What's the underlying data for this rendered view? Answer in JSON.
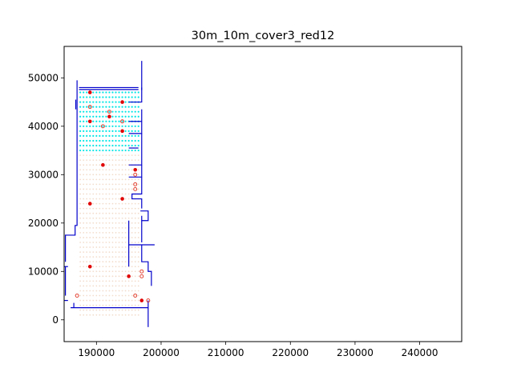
{
  "chart_data": {
    "type": "scatter",
    "title": "30m_10m_cover3_red12",
    "xlabel": "",
    "ylabel": "",
    "xlim": [
      185000,
      246500
    ],
    "ylim": [
      -4500,
      56500
    ],
    "grid": false,
    "x_ticks": [
      190000,
      200000,
      210000,
      220000,
      230000,
      240000
    ],
    "x_tick_labels": [
      "190000",
      "200000",
      "210000",
      "220000",
      "230000",
      "240000"
    ],
    "y_ticks": [
      0,
      10000,
      20000,
      30000,
      40000,
      50000
    ],
    "y_tick_labels": [
      "0",
      "10000",
      "20000",
      "30000",
      "40000",
      "50000"
    ],
    "colors": {
      "boundary": "#0000cc",
      "candidate_grid": "#f2dccc",
      "cyan_grid": "#00e5e5",
      "selected": "#e00000",
      "hollow": "#e03020"
    },
    "boundary_lines": [
      [
        [
          197000,
          53500
        ],
        [
          197000,
          45000
        ],
        [
          195000,
          45000
        ]
      ],
      [
        [
          197000,
          43500
        ],
        [
          197000,
          38500
        ],
        [
          195000,
          38500
        ]
      ],
      [
        [
          197000,
          41000
        ],
        [
          195000,
          41000
        ]
      ],
      [
        [
          197000,
          38500
        ],
        [
          197000,
          32000
        ],
        [
          195000,
          32000
        ]
      ],
      [
        [
          196500,
          35500
        ],
        [
          195000,
          35500
        ]
      ],
      [
        [
          197000,
          32000
        ],
        [
          197000,
          29500
        ],
        [
          195000,
          29500
        ]
      ],
      [
        [
          197000,
          29500
        ],
        [
          197000,
          26000
        ],
        [
          195500,
          26000
        ],
        [
          195500,
          25000
        ],
        [
          197000,
          25000
        ],
        [
          197000,
          23000
        ]
      ],
      [
        [
          197000,
          21500
        ],
        [
          197000,
          20500
        ],
        [
          198000,
          20500
        ],
        [
          198000,
          22500
        ],
        [
          196800,
          22500
        ]
      ],
      [
        [
          197000,
          20500
        ],
        [
          197000,
          16000
        ]
      ],
      [
        [
          195000,
          20500
        ],
        [
          195000,
          15500
        ],
        [
          199000,
          15500
        ]
      ],
      [
        [
          197000,
          15500
        ],
        [
          197000,
          12000
        ],
        [
          198000,
          12000
        ],
        [
          198000,
          10000
        ],
        [
          198500,
          10000
        ],
        [
          198500,
          7000
        ]
      ],
      [
        [
          195000,
          15500
        ],
        [
          195000,
          11000
        ]
      ],
      [
        [
          198000,
          4000
        ],
        [
          198000,
          -1500
        ]
      ],
      [
        [
          186000,
          2500
        ],
        [
          198000,
          2500
        ]
      ],
      [
        [
          186500,
          2500
        ],
        [
          186500,
          3500
        ]
      ],
      [
        [
          185200,
          5000
        ],
        [
          185200,
          11000
        ]
      ],
      [
        [
          185200,
          12000
        ],
        [
          185200,
          17500
        ],
        [
          186700,
          17500
        ],
        [
          186700,
          19500
        ],
        [
          187000,
          19500
        ],
        [
          187000,
          49500
        ]
      ],
      [
        [
          186800,
          43500
        ],
        [
          186800,
          45500
        ]
      ],
      [
        [
          185000,
          4000
        ],
        [
          185600,
          4000
        ]
      ],
      [
        [
          185000,
          11000
        ],
        [
          185600,
          11000
        ]
      ],
      [
        [
          187300,
          48000
        ],
        [
          196500,
          48000
        ]
      ],
      [
        [
          187300,
          47600
        ],
        [
          196500,
          47600
        ]
      ],
      [
        [
          197000,
          48000
        ],
        [
          197000,
          47500
        ]
      ]
    ],
    "grid_points": {
      "x_start": 187500,
      "x_end": 196500,
      "x_step": 500,
      "y_start": 1000,
      "y_end": 47000,
      "y_step": 1000
    },
    "cyan_region": {
      "x_min": 187500,
      "x_max": 196500,
      "y_min": 35000,
      "y_max": 47000
    },
    "selected_points": [
      [
        189000,
        47000
      ],
      [
        194000,
        45000
      ],
      [
        192000,
        42000
      ],
      [
        189000,
        41000
      ],
      [
        194000,
        39000
      ],
      [
        191000,
        32000
      ],
      [
        196000,
        31000
      ],
      [
        194000,
        25000
      ],
      [
        189000,
        24000
      ],
      [
        189000,
        11000
      ],
      [
        195000,
        9000
      ],
      [
        197000,
        4000
      ]
    ],
    "hollow_points": [
      [
        189000,
        44000
      ],
      [
        192000,
        43000
      ],
      [
        191000,
        40000
      ],
      [
        194000,
        41000
      ],
      [
        196000,
        30000
      ],
      [
        196000,
        28000
      ],
      [
        196000,
        27000
      ],
      [
        197000,
        10000
      ],
      [
        197000,
        9000
      ],
      [
        187000,
        5000
      ],
      [
        196000,
        5000
      ],
      [
        198000,
        4000
      ]
    ]
  }
}
